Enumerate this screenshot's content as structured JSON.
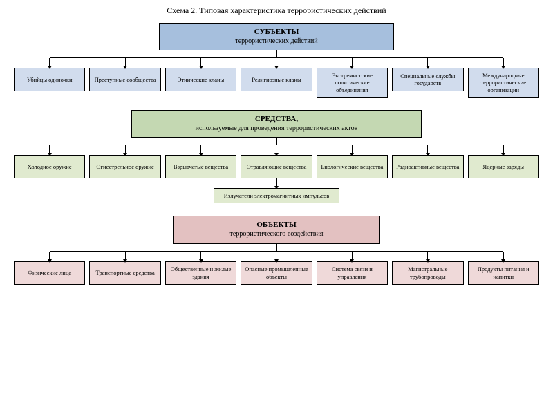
{
  "title": "Схема 2. Типовая характеристика террористических действий",
  "sections": [
    {
      "id": "subjects",
      "header": "СУБЪЕКТЫ",
      "subheader": "террористических действий",
      "parent_bg": "#a6bfdd",
      "child_bg": "#d1dced",
      "parent_width": 340,
      "children": [
        "Убийцы одиночки",
        "Преступные сообщества",
        "Этнические кланы",
        "Религиозные кланы",
        "Экстремистские политические объединения",
        "Специальные службы государств",
        "Международные террористические организации"
      ],
      "extra": null
    },
    {
      "id": "means",
      "header": "СРЕДСТВА,",
      "subheader": "используемые для проведения террористических актов",
      "parent_bg": "#c4d8b2",
      "child_bg": "#e0eacf",
      "parent_width": 420,
      "children": [
        "Холодное оружие",
        "Огнестрельное оружие",
        "Взрывчатые вещества",
        "Отравляющие вещества",
        "Биологические вещества",
        "Радиоактивные вещества",
        "Ядерные заряды"
      ],
      "extra": "Излучатели электромагнитных импульсов"
    },
    {
      "id": "objects",
      "header": "ОБЪЕКТЫ",
      "subheader": "террористического воздействия",
      "parent_bg": "#e3c1c1",
      "child_bg": "#efd9d9",
      "parent_width": 300,
      "children": [
        "Физические лица",
        "Транспортные средства",
        "Общественные и жилые здания",
        "Опасные промышленные объекты",
        "Система связи и управления",
        "Магистральные трубопроводы",
        "Продукты питания и напитки"
      ],
      "extra": null
    }
  ]
}
